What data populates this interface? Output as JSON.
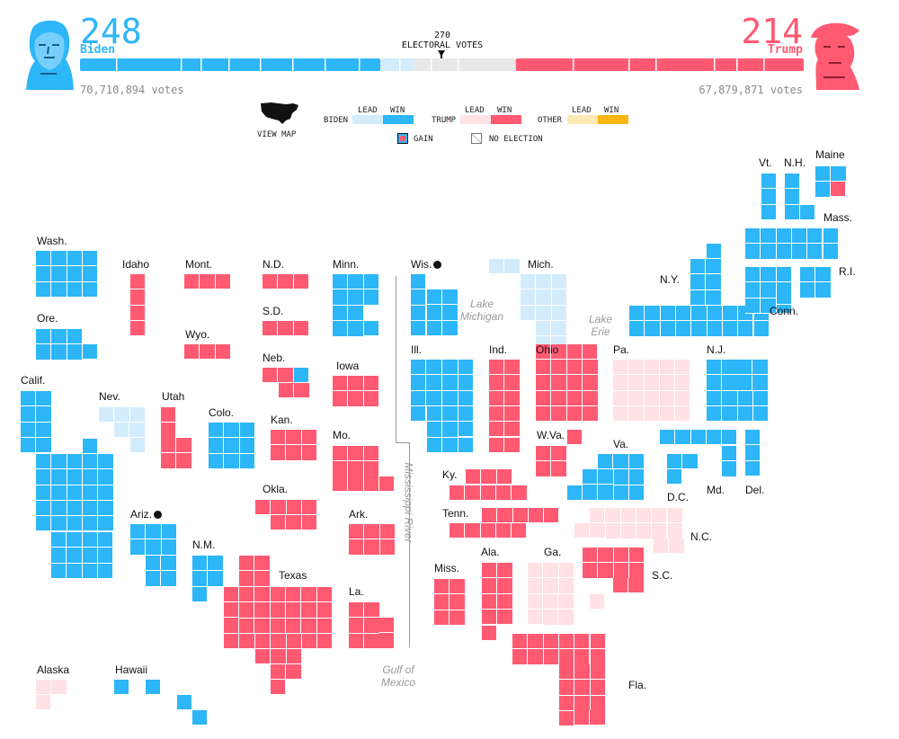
{
  "colors": {
    "biden_win": "#2db6f8",
    "biden_lead": "#d3ecfc",
    "trump_win": "#ff5a72",
    "trump_lead": "#ffe1e6",
    "other_win": "#fbb615",
    "other_lead": "#fde9b4",
    "track": "#e8e8e8"
  },
  "header": {
    "biden": {
      "ev": "248",
      "name": "Biden",
      "votes": "70,710,894 votes"
    },
    "trump": {
      "ev": "214",
      "name": "Trump",
      "votes": "67,879,871 votes"
    },
    "threshold": {
      "num": "270",
      "label": "ELECTORAL VOTES"
    },
    "total_ev": 538
  },
  "legend": {
    "view_map": "VIEW MAP",
    "lead": "LEAD",
    "win": "WIN",
    "biden": "BIDEN",
    "trump": "TRUMP",
    "other": "OTHER",
    "gain": "GAIN",
    "no_election": "NO ELECTION",
    "map_icon": "us-map-icon"
  },
  "geo_labels": {
    "lake_michigan": "Lake\nMichigan",
    "lake_erie": "Lake\nErie",
    "mississippi": "Mississippi River",
    "gulf": "Gulf of\nMexico"
  },
  "states": [
    {
      "name": "Wash.",
      "status": "biden_win",
      "dot": false
    },
    {
      "name": "Ore.",
      "status": "biden_win",
      "dot": false
    },
    {
      "name": "Calif.",
      "status": "biden_win",
      "dot": false
    },
    {
      "name": "Idaho",
      "status": "trump_win",
      "dot": false
    },
    {
      "name": "Nev.",
      "status": "biden_lead",
      "dot": false
    },
    {
      "name": "Utah",
      "status": "trump_win",
      "dot": false
    },
    {
      "name": "Ariz.",
      "status": "biden_win",
      "dot": true
    },
    {
      "name": "Mont.",
      "status": "trump_win",
      "dot": false
    },
    {
      "name": "Wyo.",
      "status": "trump_win",
      "dot": false
    },
    {
      "name": "Colo.",
      "status": "biden_win",
      "dot": false
    },
    {
      "name": "N.M.",
      "status": "biden_win",
      "dot": false
    },
    {
      "name": "N.D.",
      "status": "trump_win",
      "dot": false
    },
    {
      "name": "S.D.",
      "status": "trump_win",
      "dot": false
    },
    {
      "name": "Neb.",
      "status": "trump_win",
      "dot": false
    },
    {
      "name": "Kan.",
      "status": "trump_win",
      "dot": false
    },
    {
      "name": "Okla.",
      "status": "trump_win",
      "dot": false
    },
    {
      "name": "Texas",
      "status": "trump_win",
      "dot": false
    },
    {
      "name": "Minn.",
      "status": "biden_win",
      "dot": false
    },
    {
      "name": "Iowa",
      "status": "trump_win",
      "dot": false
    },
    {
      "name": "Mo.",
      "status": "trump_win",
      "dot": false
    },
    {
      "name": "Ark.",
      "status": "trump_win",
      "dot": false
    },
    {
      "name": "La.",
      "status": "trump_win",
      "dot": false
    },
    {
      "name": "Wis.",
      "status": "biden_win",
      "dot": true
    },
    {
      "name": "Ill.",
      "status": "biden_win",
      "dot": false
    },
    {
      "name": "Mich.",
      "status": "biden_lead",
      "dot": false
    },
    {
      "name": "Ind.",
      "status": "trump_win",
      "dot": false
    },
    {
      "name": "Ohio",
      "status": "trump_win",
      "dot": false
    },
    {
      "name": "Ky.",
      "status": "trump_win",
      "dot": false
    },
    {
      "name": "Tenn.",
      "status": "trump_win",
      "dot": false
    },
    {
      "name": "Miss.",
      "status": "trump_win",
      "dot": false
    },
    {
      "name": "Ala.",
      "status": "trump_win",
      "dot": false
    },
    {
      "name": "Ga.",
      "status": "trump_lead",
      "dot": false
    },
    {
      "name": "Fla.",
      "status": "trump_win",
      "dot": false
    },
    {
      "name": "S.C.",
      "status": "trump_win",
      "dot": false
    },
    {
      "name": "N.C.",
      "status": "trump_lead",
      "dot": false
    },
    {
      "name": "Va.",
      "status": "biden_win",
      "dot": false
    },
    {
      "name": "W.Va.",
      "status": "trump_win",
      "dot": false
    },
    {
      "name": "Pa.",
      "status": "trump_lead",
      "dot": false
    },
    {
      "name": "N.Y.",
      "status": "biden_win",
      "dot": false
    },
    {
      "name": "N.J.",
      "status": "biden_win",
      "dot": false
    },
    {
      "name": "Md.",
      "status": "biden_win",
      "dot": false
    },
    {
      "name": "Del.",
      "status": "biden_win",
      "dot": false
    },
    {
      "name": "D.C.",
      "status": "biden_win",
      "dot": false
    },
    {
      "name": "Conn.",
      "status": "biden_win",
      "dot": false
    },
    {
      "name": "R.I.",
      "status": "biden_win",
      "dot": false
    },
    {
      "name": "Mass.",
      "status": "biden_win",
      "dot": false
    },
    {
      "name": "Vt.",
      "status": "biden_win",
      "dot": false
    },
    {
      "name": "N.H.",
      "status": "biden_win",
      "dot": false
    },
    {
      "name": "Maine",
      "status": "biden_win",
      "dot": false
    },
    {
      "name": "Alaska",
      "status": "trump_lead",
      "dot": false
    },
    {
      "name": "Hawaii",
      "status": "biden_win",
      "dot": false
    }
  ]
}
